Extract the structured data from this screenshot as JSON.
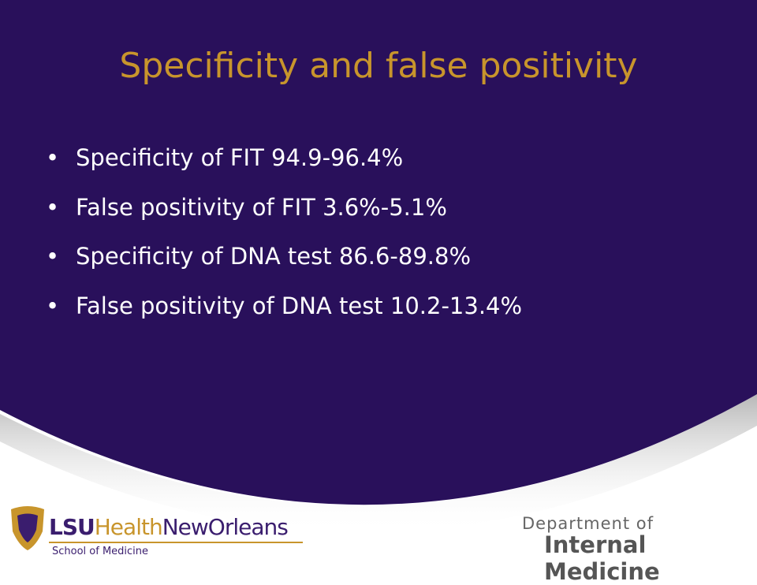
{
  "slide": {
    "title": "Specificity and false positivity",
    "bullets": [
      "Specificity of FIT 94.9-96.4%",
      "False positivity of FIT 3.6%-5.1%",
      "Specificity of DNA test 86.6-89.8%",
      "False positivity of DNA test 10.2-13.4%"
    ]
  },
  "footer": {
    "logo": {
      "lsu": "LSU",
      "health": "Health",
      "new_orleans": "NewOrleans",
      "school": "School of Medicine"
    },
    "department": {
      "line1": "Department of",
      "line2": "Internal Medicine"
    }
  }
}
